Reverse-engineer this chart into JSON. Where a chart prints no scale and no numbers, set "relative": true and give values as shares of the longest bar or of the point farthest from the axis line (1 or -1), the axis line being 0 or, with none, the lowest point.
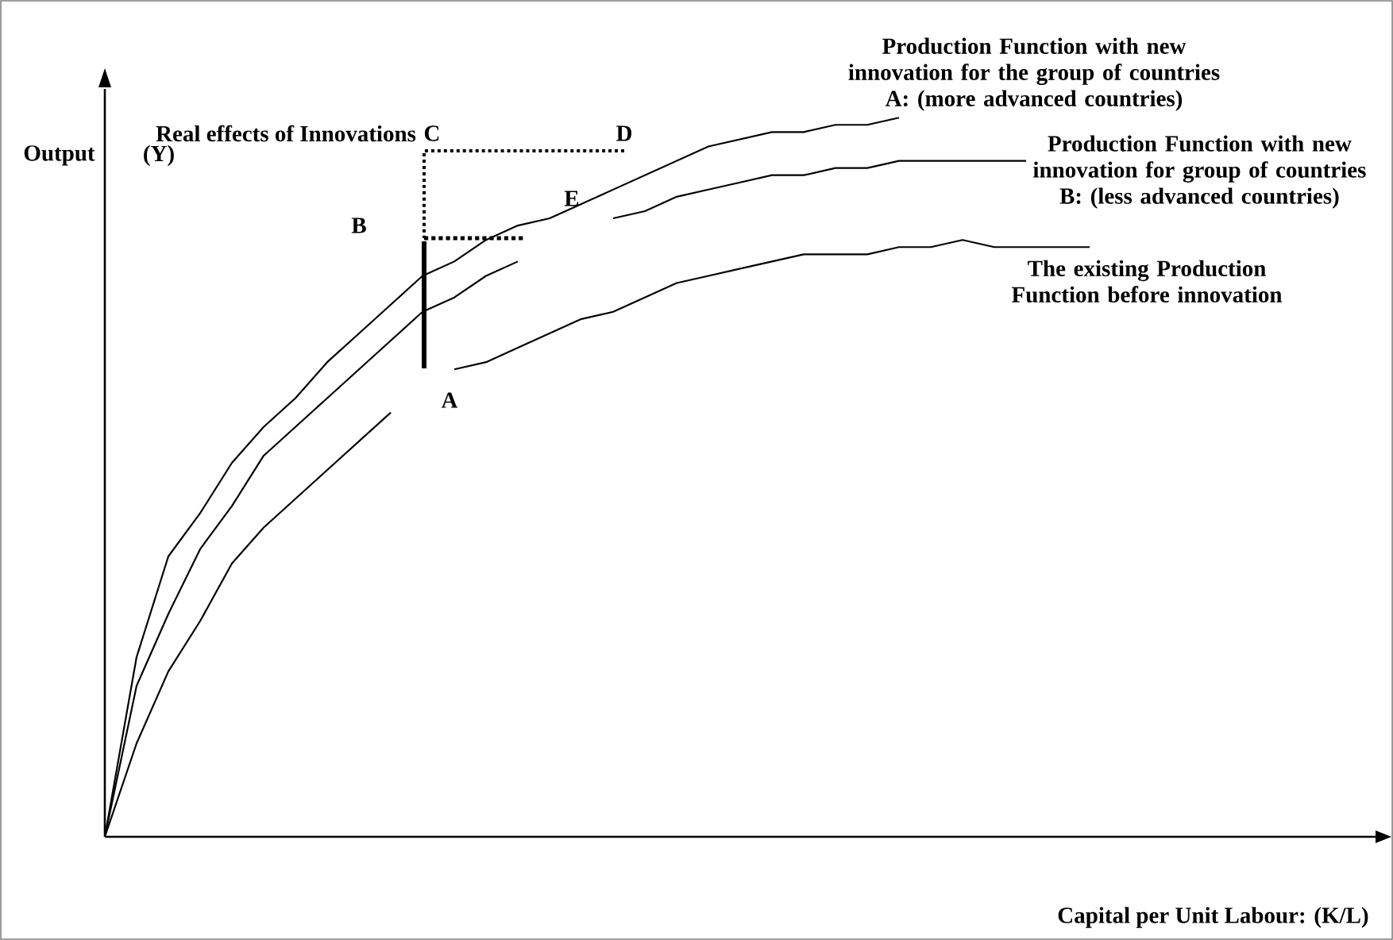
{
  "chart_data": {
    "type": "line",
    "relative": true,
    "xlabel": "Capital per Unit Labour: (K/L)",
    "ylabel": "Output",
    "categories": [
      null,
      null,
      null,
      null,
      null,
      null,
      null,
      null,
      null,
      null,
      null,
      null,
      null,
      null,
      null,
      null,
      null,
      null,
      null,
      null,
      null,
      null,
      null,
      null,
      null,
      null,
      null,
      null,
      null,
      null,
      null,
      null,
      null,
      null,
      null,
      null,
      null,
      null,
      null,
      null
    ],
    "series": [
      {
        "name": "Production Function with new innovation for the group of countries A: (more advanced countries)",
        "color": "#000000",
        "values": [
          0,
          0.25,
          0.39,
          0.45,
          0.52,
          0.57,
          0.61,
          0.66,
          0.7,
          0.74,
          0.78,
          0.8,
          0.83,
          0.85,
          0.86,
          0.88,
          0.9,
          0.92,
          0.94,
          0.96,
          0.97,
          0.98,
          0.98,
          0.99,
          0.99,
          1.0,
          null,
          null,
          null,
          null,
          null,
          null,
          null,
          null,
          null,
          null,
          null,
          null,
          null,
          null
        ]
      },
      {
        "name": "Production Function with new innovation for group of countries B: (less advanced countries)",
        "color": "#000000",
        "values": [
          0,
          0.21,
          0.31,
          0.4,
          0.46,
          0.53,
          0.57,
          0.61,
          0.65,
          0.69,
          0.73,
          0.75,
          0.78,
          0.8,
          null,
          null,
          0.86,
          0.87,
          0.89,
          0.9,
          0.91,
          0.92,
          0.92,
          0.93,
          0.93,
          0.94,
          0.94,
          0.94,
          0.94,
          0.94,
          null,
          null,
          null,
          null,
          null,
          null,
          null,
          null,
          null,
          null
        ]
      },
      {
        "name": "The existing Production Function before innovation",
        "color": "#000000",
        "values": [
          0,
          0.13,
          0.23,
          0.3,
          0.38,
          0.43,
          0.47,
          0.51,
          0.55,
          0.59,
          null,
          0.65,
          0.66,
          0.68,
          0.7,
          0.72,
          0.73,
          0.75,
          0.77,
          0.78,
          0.79,
          0.8,
          0.81,
          0.81,
          0.81,
          0.82,
          0.82,
          0.83,
          0.82,
          0.82,
          0.82,
          0.82,
          null,
          null,
          null,
          null,
          null,
          null,
          null,
          null
        ]
      }
    ],
    "annotations": [
      "(Y)",
      "Real effects of Innovations",
      "A",
      "B",
      "C",
      "D",
      "E"
    ]
  }
}
